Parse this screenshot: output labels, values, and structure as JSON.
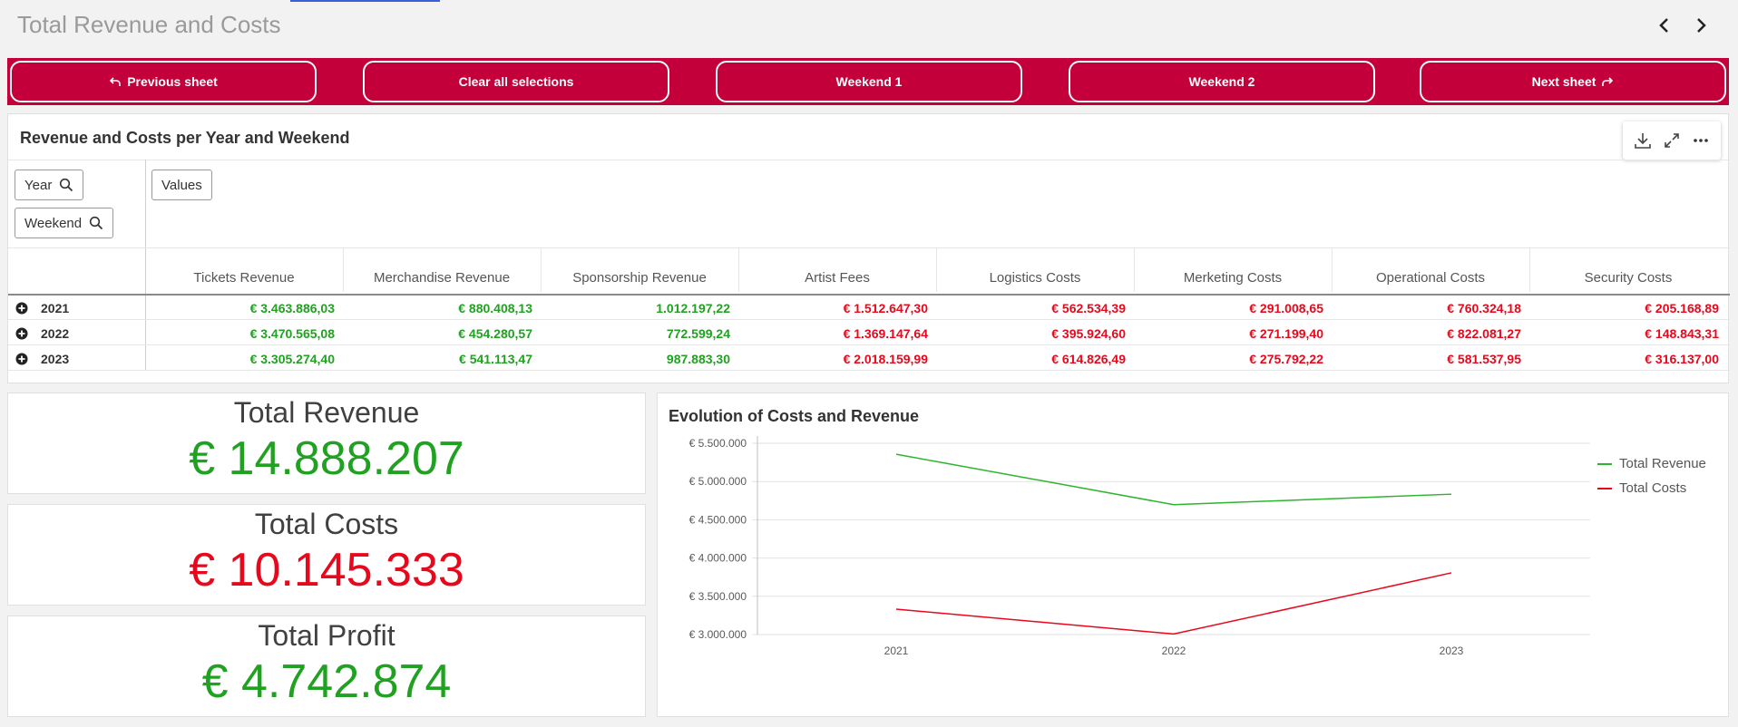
{
  "app": {
    "title": "Total Revenue and Costs"
  },
  "nav_buttons": {
    "previous_sheet": "Previous sheet",
    "clear_all": "Clear all selections",
    "weekend1": "Weekend 1",
    "weekend2": "Weekend 2",
    "next_sheet": "Next sheet"
  },
  "table": {
    "title": "Revenue and Costs per Year and Weekend",
    "dimensions": [
      "Year",
      "Weekend"
    ],
    "values_label": "Values",
    "columns": [
      "Tickets Revenue",
      "Merchandise Revenue",
      "Sponsorship Revenue",
      "Artist Fees",
      "Logistics Costs",
      "Merketing Costs",
      "Operational Costs",
      "Security Costs"
    ],
    "column_sign": [
      "pos",
      "pos",
      "pos",
      "neg",
      "neg",
      "neg",
      "neg",
      "neg"
    ],
    "rows": [
      {
        "year": "2021",
        "cells": [
          "€ 3.463.886,03",
          "€ 880.408,13",
          "1.012.197,22",
          "€ 1.512.647,30",
          "€ 562.534,39",
          "€ 291.008,65",
          "€ 760.324,18",
          "€ 205.168,89"
        ]
      },
      {
        "year": "2022",
        "cells": [
          "€ 3.470.565,08",
          "€ 454.280,57",
          "772.599,24",
          "€ 1.369.147,64",
          "€ 395.924,60",
          "€ 271.199,40",
          "€ 822.081,27",
          "€ 148.843,31"
        ]
      },
      {
        "year": "2023",
        "cells": [
          "€ 3.305.274,40",
          "€ 541.113,47",
          "987.883,30",
          "€ 2.018.159,99",
          "€ 614.826,49",
          "€ 275.792,22",
          "€ 581.537,95",
          "€ 316.137,00"
        ]
      }
    ]
  },
  "kpis": {
    "revenue": {
      "label": "Total Revenue",
      "value": "€ 14.888.207"
    },
    "costs": {
      "label": "Total Costs",
      "value": "€ 10.145.333"
    },
    "profit": {
      "label": "Total Profit",
      "value": "€ 4.742.874"
    }
  },
  "colors": {
    "brand": "#c3003a",
    "positive": "#21a121",
    "negative": "#e8081c"
  },
  "chart_data": {
    "type": "line",
    "title": "Evolution of Costs and Revenue",
    "x": [
      "2021",
      "2022",
      "2023"
    ],
    "series": [
      {
        "name": "Total Revenue",
        "color": "#2db52d",
        "values": [
          5356492,
          4697445,
          4834271
        ]
      },
      {
        "name": "Total Costs",
        "color": "#e8081c",
        "values": [
          3331683,
          3007196,
          3806454
        ]
      }
    ],
    "ylim": [
      3000000,
      5500000
    ],
    "yticks": [
      3000000,
      3500000,
      4000000,
      4500000,
      5000000,
      5500000
    ],
    "ytick_labels": [
      "€ 3.000.000",
      "€ 3.500.000",
      "€ 4.000.000",
      "€ 4.500.000",
      "€ 5.000.000",
      "€ 5.500.000"
    ],
    "legend": "top-right",
    "grid": true
  }
}
